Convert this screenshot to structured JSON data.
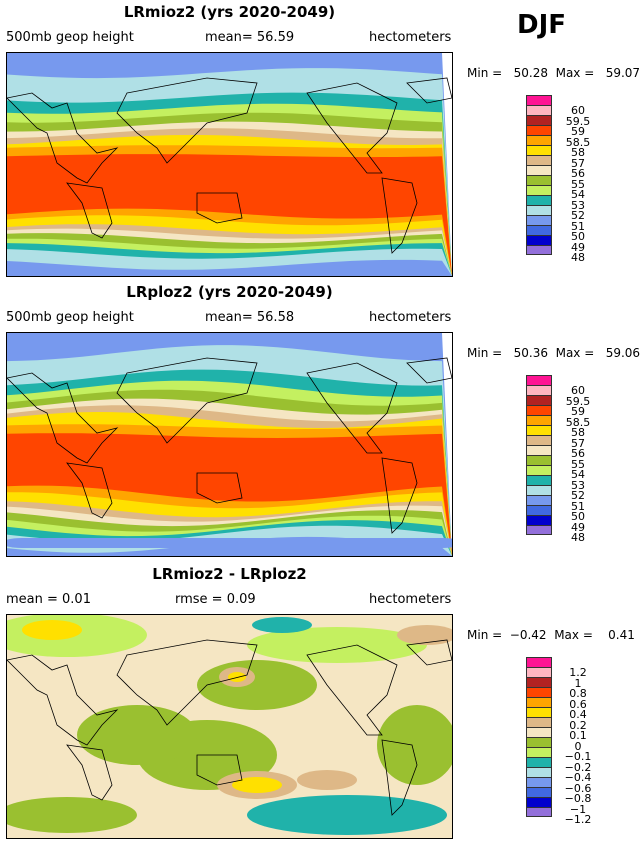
{
  "season": "DJF",
  "colors": [
    "#ff1493",
    "#ffb6c1",
    "#b22222",
    "#ff4500",
    "#ffa500",
    "#ffe000",
    "#deb887",
    "#f5e6c3",
    "#9ac030",
    "#c4f060",
    "#20b2aa",
    "#b0e0e6",
    "#7799ee",
    "#4169e1",
    "#0000cd",
    "#9370db"
  ],
  "panels": [
    {
      "title": "LRmioz2 (yrs 2020-2049)",
      "left": "500mb geop height",
      "mid": "mean=  56.59",
      "right": "hectometers",
      "minmax": "Min =   50.28  Max =   59.07",
      "levels": [
        "60",
        "59.5",
        "59",
        "58.5",
        "58",
        "57",
        "56",
        "55",
        "54",
        "53",
        "52",
        "51",
        "50",
        "49",
        "48"
      ]
    },
    {
      "title": "LRploz2 (yrs 2020-2049)",
      "left": "500mb geop height",
      "mid": "mean=  56.58",
      "right": "hectometers",
      "minmax": "Min =   50.36  Max =   59.06",
      "levels": [
        "60",
        "59.5",
        "59",
        "58.5",
        "58",
        "57",
        "56",
        "55",
        "54",
        "53",
        "52",
        "51",
        "50",
        "49",
        "48"
      ]
    },
    {
      "title": "LRmioz2 - LRploz2",
      "left": "mean =   0.01",
      "mid": "rmse =   0.09",
      "right": "hectometers",
      "minmax": "Min =  −0.42  Max =    0.41",
      "levels": [
        "1.2",
        "1",
        "0.8",
        "0.6",
        "0.4",
        "0.2",
        "0.1",
        "0",
        "−0.1",
        "−0.2",
        "−0.4",
        "−0.6",
        "−0.8",
        "−1",
        "−1.2"
      ]
    }
  ]
}
